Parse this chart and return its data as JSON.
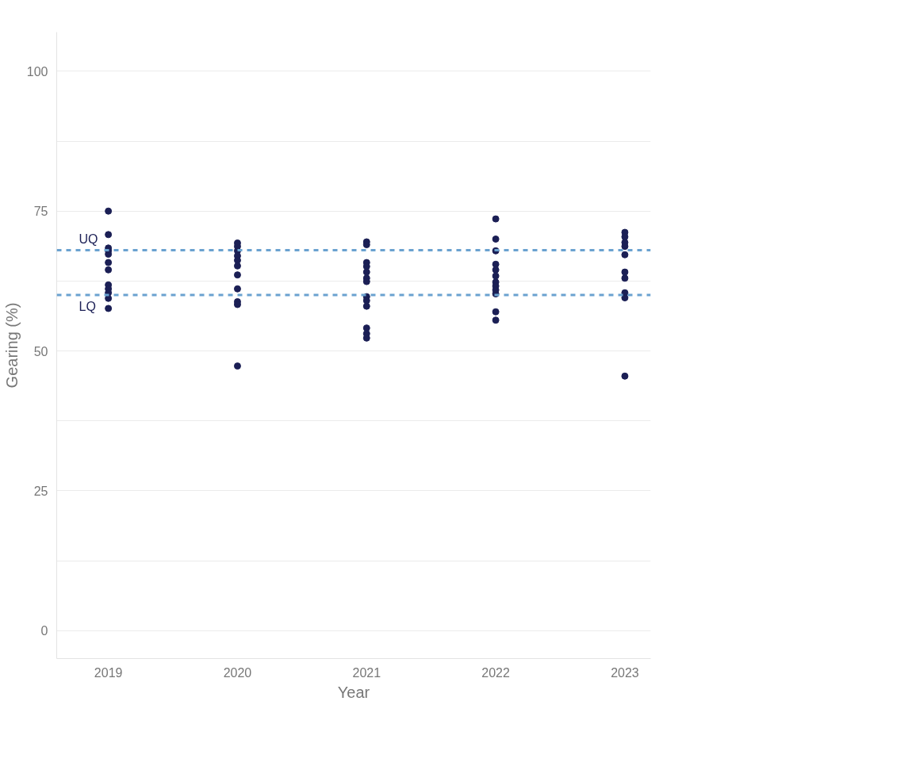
{
  "chart_data": {
    "type": "scatter",
    "xlabel": "Year",
    "ylabel": "Gearing (%)",
    "xlim": [
      2018.6,
      2023.2
    ],
    "ylim": [
      -5,
      107
    ],
    "xticks": [
      2019,
      2020,
      2021,
      2022,
      2023
    ],
    "yticks": [
      0,
      {
        "value": 12.5,
        "label": null
      },
      25,
      {
        "value": 37.5,
        "label": null
      },
      50,
      {
        "value": 62.5,
        "label": null
      },
      75,
      {
        "value": 87.5,
        "label": null
      },
      100
    ],
    "grid": "y",
    "marker": "circle",
    "series": [
      {
        "color": "#1b1f55",
        "x": [
          2019,
          2019,
          2019,
          2019,
          2019,
          2019,
          2019,
          2019,
          2019,
          2019,
          2019,
          2019,
          2020,
          2020,
          2020,
          2020,
          2020,
          2020,
          2020,
          2020,
          2020,
          2020,
          2020,
          2021,
          2021,
          2021,
          2021,
          2021,
          2021,
          2021,
          2021,
          2021,
          2021,
          2021,
          2021,
          2021,
          2022,
          2022,
          2022,
          2022,
          2022,
          2022,
          2022,
          2022,
          2022,
          2022,
          2022,
          2022,
          2023,
          2023,
          2023,
          2023,
          2023,
          2023,
          2023,
          2023,
          2023,
          2023
        ],
        "values": [
          75,
          70.8,
          68.4,
          67.9,
          67.3,
          65.8,
          64.5,
          61.8,
          61.1,
          60.4,
          59.4,
          57.6,
          69.3,
          68.7,
          67.9,
          67.0,
          66.2,
          65.2,
          63.6,
          61.1,
          58.8,
          58.3,
          47.3,
          69.5,
          69.0,
          65.8,
          65.1,
          64.1,
          63.0,
          62.4,
          59.7,
          59.0,
          58.0,
          54.1,
          53.1,
          52.3,
          73.6,
          70.0,
          67.9,
          65.5,
          64.5,
          63.4,
          62.3,
          61.6,
          60.9,
          60.2,
          57.0,
          55.5,
          71.2,
          70.4,
          69.4,
          68.7,
          67.2,
          64.1,
          63.0,
          60.4,
          59.5,
          45.5
        ]
      }
    ],
    "ref_lines": [
      {
        "axis": "y",
        "value": 68,
        "label": "UQ",
        "color": "#6aa2d0",
        "line_style": "dashed"
      },
      {
        "axis": "y",
        "value": 60,
        "label": "LQ",
        "color": "#6aa2d0",
        "line_style": "dashed"
      }
    ]
  }
}
